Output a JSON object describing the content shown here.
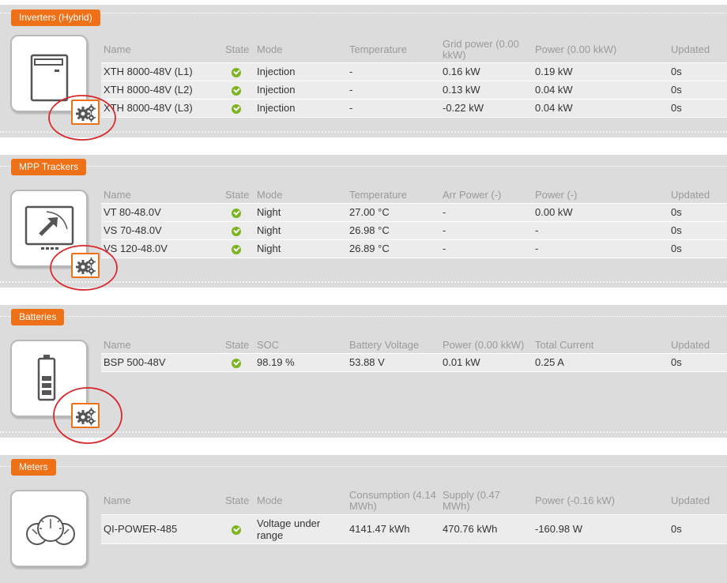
{
  "columns_default": {
    "name": "Name",
    "state": "State",
    "updated": "Updated"
  },
  "inverters": {
    "title": "Inverters (Hybrid)",
    "headers": {
      "name": "Name",
      "state": "State",
      "mode": "Mode",
      "temperature": "Temperature",
      "grid_power": "Grid power (0.00 kkW)",
      "power": "Power (0.00 kkW)",
      "updated": "Updated"
    },
    "rows": [
      {
        "name": "XTH 8000-48V (L1)",
        "mode": "Injection",
        "temperature": "-",
        "grid_power": "0.16 kW",
        "power": "0.19 kW",
        "updated": "0s"
      },
      {
        "name": "XTH 8000-48V (L2)",
        "mode": "Injection",
        "temperature": "-",
        "grid_power": "0.13 kW",
        "power": "0.04 kW",
        "updated": "0s"
      },
      {
        "name": "XTH 8000-48V (L3)",
        "mode": "Injection",
        "temperature": "-",
        "grid_power": "-0.22 kW",
        "power": "0.04 kW",
        "updated": "0s"
      }
    ]
  },
  "mpp": {
    "title": "MPP Trackers",
    "headers": {
      "name": "Name",
      "state": "State",
      "mode": "Mode",
      "temperature": "Temperature",
      "arr_power": "Arr Power (-)",
      "power": "Power (-)",
      "updated": "Updated"
    },
    "rows": [
      {
        "name": "VT 80-48.0V",
        "mode": "Night",
        "temperature": "27.00 °C",
        "arr_power": "-",
        "power": "0.00 kW",
        "updated": "0s"
      },
      {
        "name": "VS 70-48.0V",
        "mode": "Night",
        "temperature": "26.98 °C",
        "arr_power": "-",
        "power": "-",
        "updated": "0s"
      },
      {
        "name": "VS 120-48.0V",
        "mode": "Night",
        "temperature": "26.89 °C",
        "arr_power": "-",
        "power": "-",
        "updated": "0s"
      }
    ]
  },
  "batteries": {
    "title": "Batteries",
    "headers": {
      "name": "Name",
      "state": "State",
      "soc": "SOC",
      "voltage": "Battery Voltage",
      "power": "Power (0.00 kkW)",
      "current": "Total Current",
      "updated": "Updated"
    },
    "rows": [
      {
        "name": "BSP 500-48V",
        "soc": "98.19 %",
        "voltage": "53.88 V",
        "power": "0.01 kW",
        "current": "0.25 A",
        "updated": "0s"
      }
    ]
  },
  "meters": {
    "title": "Meters",
    "headers": {
      "name": "Name",
      "state": "State",
      "mode": "Mode",
      "consumption": "Consumption (4.14 MWh)",
      "supply": "Supply (0.47 MWh)",
      "power": "Power (-0.16 kW)",
      "updated": "Updated"
    },
    "rows": [
      {
        "name": "QI-POWER-485",
        "mode": "Voltage under range",
        "consumption": "4141.47 kWh",
        "supply": "470.76 kWh",
        "power": "-160.98 W",
        "updated": "0s"
      }
    ]
  },
  "colors": {
    "accent": "#ee7118",
    "ok": "#7ab51d",
    "annotation": "#d9262b"
  },
  "icons": {
    "settings": "gears-icon",
    "inverter": "inverter-device-icon",
    "mpp": "solar-charger-icon",
    "battery": "battery-icon",
    "meter": "gauges-icon"
  }
}
